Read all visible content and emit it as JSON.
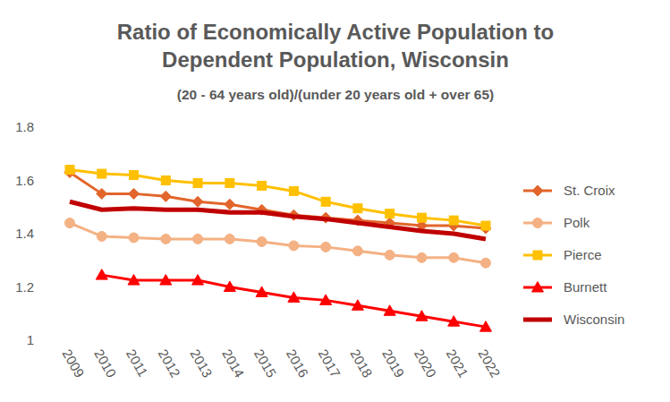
{
  "chart_data": {
    "type": "line",
    "title": [
      "Ratio of Economically Active Population to",
      "Dependent Population, Wisconsin"
    ],
    "subtitle": "(20 - 64 years old)/(under 20 years old + over 65)",
    "categories": [
      "2009",
      "2010",
      "2011",
      "2012",
      "2013",
      "2014",
      "2015",
      "2016",
      "2017",
      "2018",
      "2019",
      "2020",
      "2021",
      "2022"
    ],
    "series": [
      {
        "name": "St. Croix",
        "color": "#e2652b",
        "marker": "diamond",
        "values": [
          1.63,
          1.55,
          1.55,
          1.54,
          1.52,
          1.51,
          1.49,
          1.47,
          1.46,
          1.45,
          1.44,
          1.43,
          1.43,
          1.42
        ]
      },
      {
        "name": "Polk",
        "color": "#f4b183",
        "marker": "circle",
        "values": [
          1.44,
          1.39,
          1.385,
          1.38,
          1.38,
          1.38,
          1.37,
          1.355,
          1.35,
          1.335,
          1.32,
          1.31,
          1.31,
          1.29
        ]
      },
      {
        "name": "Pierce",
        "color": "#ffc000",
        "marker": "square",
        "values": [
          1.64,
          1.625,
          1.62,
          1.6,
          1.59,
          1.59,
          1.58,
          1.56,
          1.52,
          1.495,
          1.475,
          1.46,
          1.45,
          1.43
        ]
      },
      {
        "name": "Burnett",
        "color": "#ff0000",
        "marker": "triangle",
        "values": [
          null,
          1.245,
          1.225,
          1.225,
          1.225,
          1.2,
          1.18,
          1.16,
          1.15,
          1.13,
          1.11,
          1.09,
          1.07,
          1.05
        ]
      },
      {
        "name": "Wisconsin",
        "color": "#c00000",
        "marker": "none",
        "values": [
          1.52,
          1.49,
          1.495,
          1.49,
          1.49,
          1.48,
          1.48,
          1.465,
          1.455,
          1.44,
          1.425,
          1.41,
          1.4,
          1.38
        ]
      }
    ],
    "ylim": [
      1,
      1.8
    ],
    "yticks": [
      1,
      {
        "value": 1.2,
        "label": "1.2"
      },
      {
        "value": 1.4,
        "label": "1.4"
      },
      {
        "value": 1.6,
        "label": "1.6"
      },
      {
        "value": 1.8,
        "label": "1.8"
      }
    ],
    "grid": false,
    "legend": "right"
  }
}
